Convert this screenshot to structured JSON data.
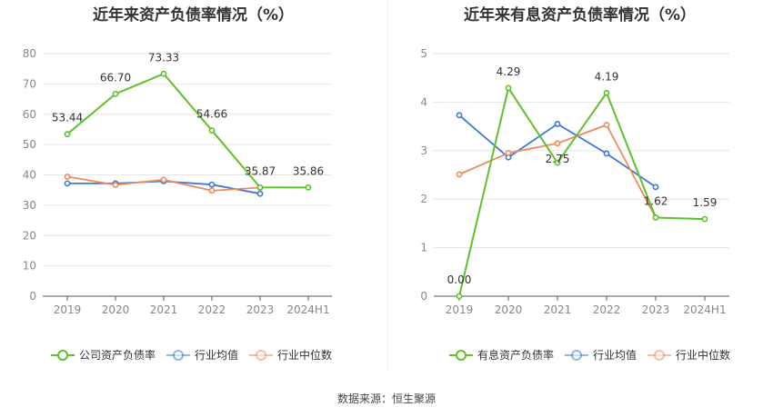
{
  "source": "数据来源：恒生聚源",
  "chart_data": [
    {
      "type": "line",
      "title": "近年来资产负债率情况（%）",
      "categories": [
        "2019",
        "2020",
        "2021",
        "2022",
        "2023",
        "2024H1"
      ],
      "ylim": [
        0,
        80
      ],
      "yticks": [
        0,
        10,
        20,
        30,
        40,
        50,
        60,
        70,
        80
      ],
      "grid": true,
      "legend_position": "bottom",
      "series": [
        {
          "name": "公司资产负债率",
          "color": "#5ec12a",
          "values": [
            53.44,
            66.7,
            73.33,
            54.66,
            35.87,
            35.86
          ],
          "labels": [
            "53.44",
            "66.70",
            "73.33",
            "54.66",
            "35.87",
            "35.86"
          ]
        },
        {
          "name": "行业均值",
          "color": "#3f78d6",
          "values": [
            37.2,
            37.2,
            37.9,
            36.8,
            33.8,
            null
          ]
        },
        {
          "name": "行业中位数",
          "color": "#ef8a5b",
          "values": [
            39.4,
            36.7,
            38.4,
            34.8,
            35.8,
            null
          ]
        }
      ]
    },
    {
      "type": "line",
      "title": "近年来有息资产负债率情况（%）",
      "categories": [
        "2019",
        "2020",
        "2021",
        "2022",
        "2023",
        "2024H1"
      ],
      "ylim": [
        0,
        5
      ],
      "yticks": [
        0,
        1,
        2,
        3,
        4,
        5
      ],
      "grid": true,
      "legend_position": "bottom",
      "series": [
        {
          "name": "有息资产负债率",
          "color": "#5ec12a",
          "values": [
            0.0,
            4.29,
            2.75,
            4.19,
            1.62,
            1.59
          ],
          "labels": [
            "0.00",
            "4.29",
            "2.75",
            "4.19",
            "1.62",
            "1.59"
          ]
        },
        {
          "name": "行业均值",
          "color": "#3f78d6",
          "values": [
            3.73,
            2.86,
            3.55,
            2.94,
            2.25,
            null
          ]
        },
        {
          "name": "行业中位数",
          "color": "#ef8a5b",
          "values": [
            2.51,
            2.95,
            3.15,
            3.53,
            1.62,
            null
          ]
        }
      ]
    }
  ]
}
